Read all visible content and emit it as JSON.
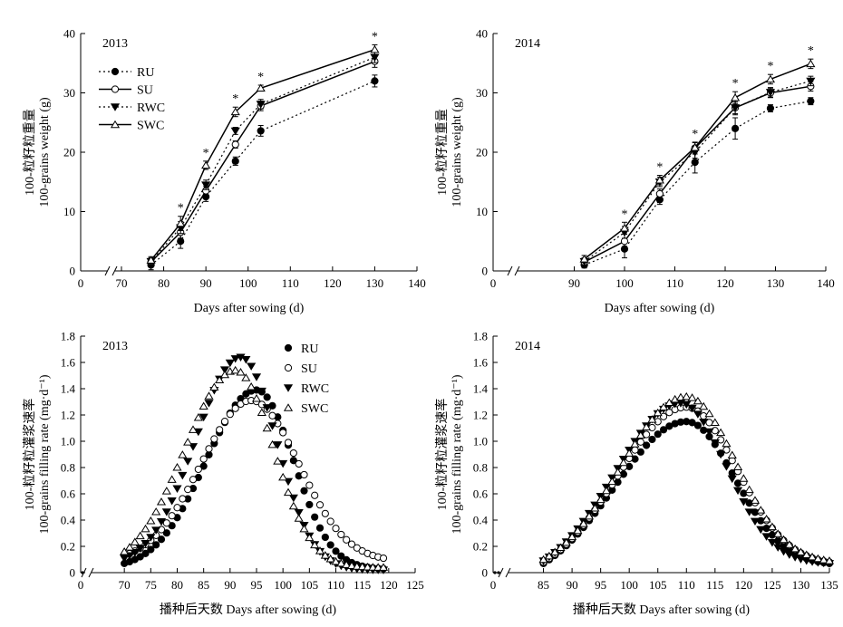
{
  "chart_data": [
    {
      "panel": "top-left",
      "type": "line",
      "title": "2013",
      "xlabel": "Days after sowing (d)",
      "ylabel_cn": "100-粒籽粒重量",
      "ylabel_en": "100-grains weight (g)",
      "xlim": [
        70,
        140
      ],
      "ylim": [
        0,
        40
      ],
      "xticks": [
        "0",
        "70",
        "80",
        "90",
        "100",
        "110",
        "120",
        "130",
        "140"
      ],
      "yticks": [
        "0",
        "10",
        "20",
        "30",
        "40"
      ],
      "legend_position": "top-left",
      "x": [
        77,
        84,
        90,
        97,
        103,
        130
      ],
      "series": [
        {
          "name": "RU",
          "marker": "filled-circle",
          "line": "dotted",
          "values": [
            1.0,
            5.0,
            12.5,
            18.5,
            23.6,
            32.0
          ],
          "err": [
            0.8,
            1.2,
            0.8,
            0.7,
            0.9,
            1.0
          ]
        },
        {
          "name": "SU",
          "marker": "open-circle",
          "line": "solid",
          "values": [
            1.5,
            6.5,
            13.5,
            21.3,
            27.8,
            35.3
          ],
          "err": [
            0.6,
            1.0,
            0.8,
            0.6,
            0.8,
            1.0
          ]
        },
        {
          "name": "RWC",
          "marker": "filled-triangle",
          "line": "dotted",
          "values": [
            1.6,
            7.3,
            14.5,
            23.6,
            28.1,
            36.0
          ],
          "err": [
            0.6,
            1.0,
            0.8,
            0.6,
            0.8,
            0.9
          ]
        },
        {
          "name": "SWC",
          "marker": "open-triangle",
          "line": "solid",
          "values": [
            1.8,
            8.0,
            17.8,
            26.8,
            30.8,
            37.3
          ],
          "err": [
            0.6,
            1.2,
            0.7,
            0.8,
            0.5,
            0.8
          ]
        }
      ],
      "significance_days": [
        84,
        90,
        97,
        103,
        130
      ],
      "significance_mark": "*"
    },
    {
      "panel": "top-right",
      "type": "line",
      "title": "2014",
      "xlabel": "Days after sowing (d)",
      "ylabel_cn": "100-粒籽粒重量",
      "ylabel_en": "100-grains weight (g)",
      "xlim": [
        80,
        140
      ],
      "ylim": [
        0,
        40
      ],
      "xticks": [
        "0",
        "90",
        "100",
        "110",
        "120",
        "130",
        "140"
      ],
      "yticks": [
        "0",
        "10",
        "20",
        "30",
        "40"
      ],
      "x": [
        92,
        100,
        107,
        114,
        122,
        129,
        137
      ],
      "series": [
        {
          "name": "RU",
          "marker": "filled-circle",
          "line": "dotted",
          "values": [
            1.0,
            3.7,
            12.0,
            18.3,
            24.0,
            27.4,
            28.6
          ],
          "err": [
            0.5,
            1.5,
            0.8,
            1.8,
            1.8,
            0.6,
            0.6
          ]
        },
        {
          "name": "SU",
          "marker": "open-circle",
          "line": "solid",
          "values": [
            1.5,
            5.0,
            13.0,
            20.7,
            27.5,
            30.0,
            31.1
          ],
          "err": [
            0.6,
            1.2,
            0.8,
            1.0,
            1.2,
            0.8,
            0.8
          ]
        },
        {
          "name": "RWC",
          "marker": "filled-triangle",
          "line": "dotted",
          "values": [
            1.6,
            6.5,
            15.0,
            20.0,
            27.5,
            30.1,
            32.0
          ],
          "err": [
            0.6,
            1.0,
            0.8,
            1.0,
            1.0,
            0.8,
            0.8
          ]
        },
        {
          "name": "SWC",
          "marker": "open-triangle",
          "line": "solid",
          "values": [
            2.0,
            7.2,
            15.3,
            20.8,
            29.2,
            32.3,
            34.9
          ],
          "err": [
            0.6,
            1.0,
            0.8,
            0.8,
            1.0,
            0.8,
            0.8
          ]
        }
      ],
      "significance_days": [
        100,
        107,
        114,
        122,
        129,
        137
      ],
      "significance_mark": "*"
    },
    {
      "panel": "bottom-left",
      "type": "scatter",
      "title": "2013",
      "xlabel": "播种后天数 Days after sowing (d)",
      "ylabel_cn": "100-粒籽粒灌浆速率",
      "ylabel_en": "100-grains filling rate (mg·d⁻¹)",
      "xlim": [
        65,
        125
      ],
      "ylim": [
        0,
        1.8
      ],
      "xticks": [
        "0",
        "70",
        "75",
        "80",
        "85",
        "90",
        "95",
        "100",
        "105",
        "110",
        "115",
        "120",
        "125"
      ],
      "yticks": [
        "0",
        "0.2",
        "0.4",
        "0.6",
        "0.8",
        "1.0",
        "1.2",
        "1.4",
        "1.6",
        "1.8"
      ],
      "legend_position": "top-right",
      "x_range": [
        70,
        119
      ],
      "series": [
        {
          "name": "RU",
          "marker": "filled-circle",
          "peak_day": 95,
          "peak": 1.39,
          "width_left": 9.5,
          "width_right": 7.0,
          "start_value": 0.07,
          "end_value": 0.03
        },
        {
          "name": "SU",
          "marker": "open-circle",
          "peak_day": 94,
          "peak": 1.31,
          "width_left": 9.5,
          "width_right": 9.0,
          "start_value": 0.13,
          "end_value": 0.11
        },
        {
          "name": "RWC",
          "marker": "filled-triangle",
          "peak_day": 92,
          "peak": 1.64,
          "width_left": 8.5,
          "width_right": 6.8,
          "start_value": 0.11,
          "end_value": 0.02
        },
        {
          "name": "SWC",
          "marker": "open-triangle",
          "peak_day": 91,
          "peak": 1.54,
          "width_left": 9.5,
          "width_right": 7.2,
          "start_value": 0.16,
          "end_value": 0.04
        }
      ]
    },
    {
      "panel": "bottom-right",
      "type": "scatter",
      "title": "2014",
      "xlabel": "播种后天数 Days after sowing (d)",
      "ylabel_cn": "100-粒籽粒灌浆速率",
      "ylabel_en": "100-grains filling rate (mg·d⁻¹)",
      "xlim": [
        80,
        135
      ],
      "ylim": [
        0,
        1.8
      ],
      "xticks": [
        "0",
        "85",
        "90",
        "95",
        "100",
        "105",
        "110",
        "115",
        "120",
        "125",
        "130",
        "135"
      ],
      "yticks": [
        "0",
        "0.2",
        "0.4",
        "0.6",
        "0.8",
        "1.0",
        "1.2",
        "1.4",
        "1.6",
        "1.8"
      ],
      "x_range": [
        85,
        135
      ],
      "series": [
        {
          "name": "RU",
          "marker": "filled-circle",
          "peak_day": 110,
          "peak": 1.15,
          "width_left": 12.5,
          "width_right": 8.5,
          "start_value": 0.07,
          "end_value": 0.07
        },
        {
          "name": "SU",
          "marker": "open-circle",
          "peak_day": 110,
          "peak": 1.26,
          "width_left": 12.0,
          "width_right": 8.8,
          "start_value": 0.08,
          "end_value": 0.08
        },
        {
          "name": "RWC",
          "marker": "filled-triangle",
          "peak_day": 109,
          "peak": 1.29,
          "width_left": 11.5,
          "width_right": 8.0,
          "start_value": 0.09,
          "end_value": 0.07
        },
        {
          "name": "SWC",
          "marker": "open-triangle",
          "peak_day": 110,
          "peak": 1.34,
          "width_left": 11.5,
          "width_right": 8.6,
          "start_value": 0.1,
          "end_value": 0.09
        }
      ]
    }
  ]
}
